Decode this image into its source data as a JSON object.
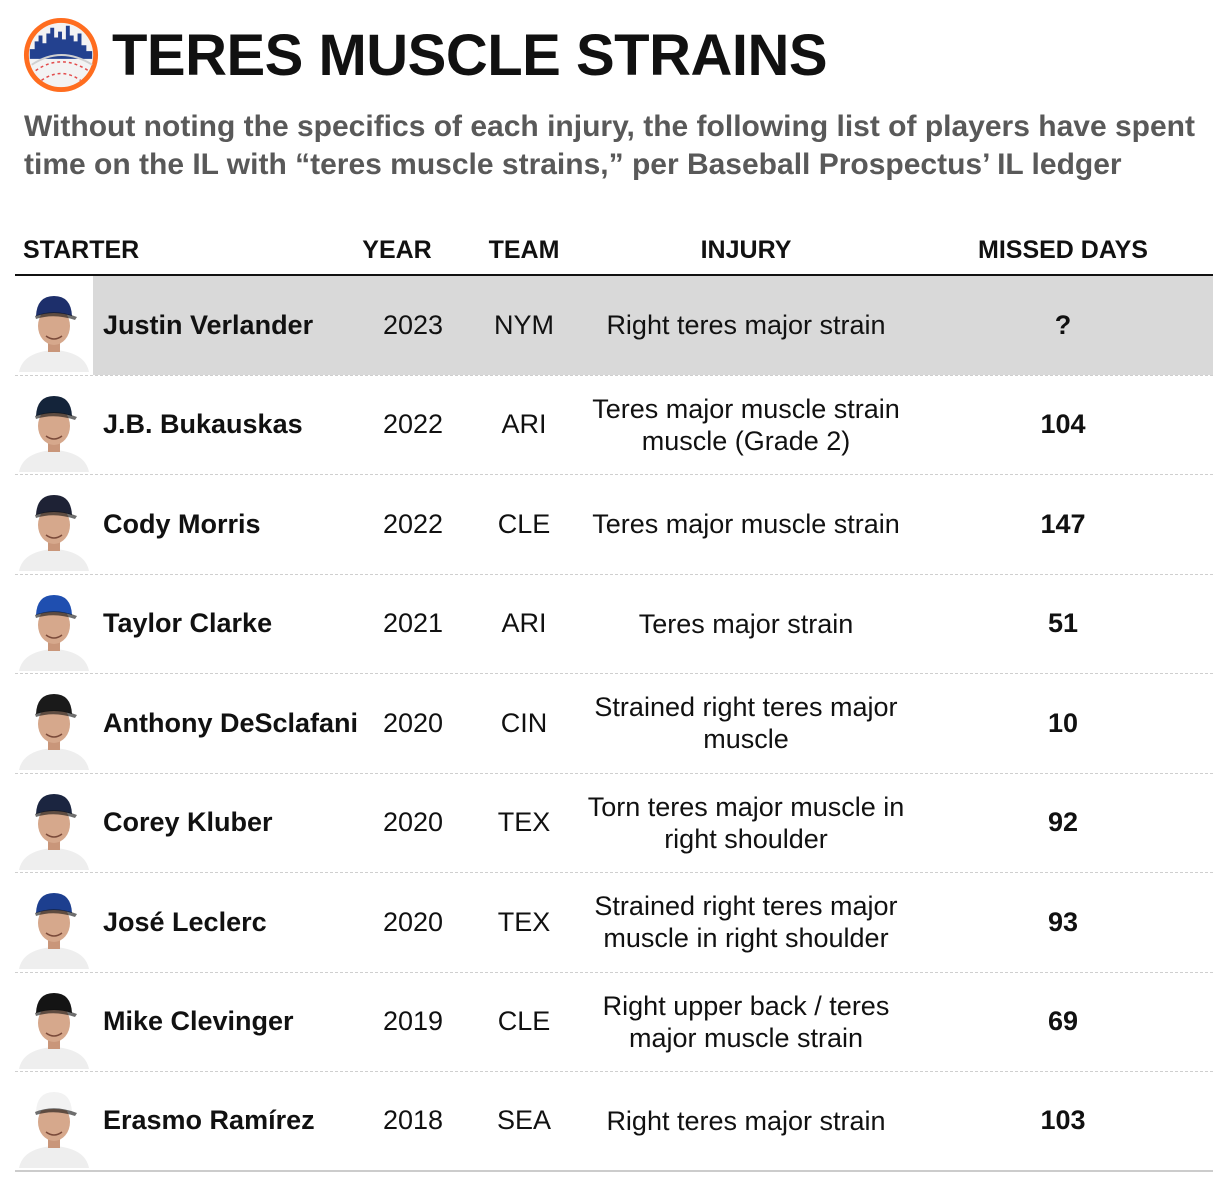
{
  "header": {
    "title": "TERES MUSCLE STRAINS",
    "logo_icon": "mets-skyline-baseball-logo",
    "subtitle": "Without noting the specifics of each injury, the following list of players have spent time on the IL with “teres muscle strains,” per Baseball Prospectus’ IL ledger"
  },
  "table": {
    "columns": [
      "STARTER",
      "YEAR",
      "TEAM",
      "INJURY",
      "MISSED DAYS"
    ],
    "rows": [
      {
        "name": "Justin Verlander",
        "year": "2023",
        "team": "NYM",
        "injury": "Right teres major strain",
        "missed": "?",
        "cap_color": "#1d2f6b",
        "highlight": true
      },
      {
        "name": "J.B. Bukauskas",
        "year": "2022",
        "team": "ARI",
        "injury": "Teres major muscle strain muscle (Grade 2)",
        "missed": "104",
        "cap_color": "#14243a",
        "highlight": false
      },
      {
        "name": "Cody Morris",
        "year": "2022",
        "team": "CLE",
        "injury": "Teres major muscle strain",
        "missed": "147",
        "cap_color": "#1e2235",
        "highlight": false
      },
      {
        "name": "Taylor Clarke",
        "year": "2021",
        "team": "ARI",
        "injury": "Teres major strain",
        "missed": "51",
        "cap_color": "#1f4fb0",
        "highlight": false
      },
      {
        "name": "Anthony DeSclafani",
        "year": "2020",
        "team": "CIN",
        "injury": "Strained right teres major muscle",
        "missed": "10",
        "cap_color": "#1a1a1a",
        "highlight": false
      },
      {
        "name": "Corey Kluber",
        "year": "2020",
        "team": "TEX",
        "injury": "Torn teres major muscle in right shoulder",
        "missed": "92",
        "cap_color": "#1b2540",
        "highlight": false
      },
      {
        "name": "José Leclerc",
        "year": "2020",
        "team": "TEX",
        "injury": "Strained right teres major muscle in right shoulder",
        "missed": "93",
        "cap_color": "#1d3f8f",
        "highlight": false
      },
      {
        "name": "Mike Clevinger",
        "year": "2019",
        "team": "CLE",
        "injury": "Right upper back / teres major muscle strain",
        "missed": "69",
        "cap_color": "#141414",
        "highlight": false
      },
      {
        "name": "Erasmo Ramírez",
        "year": "2018",
        "team": "SEA",
        "injury": "Right teres major strain",
        "missed": "103",
        "cap_color": "#f2f2f2",
        "highlight": false
      }
    ]
  }
}
